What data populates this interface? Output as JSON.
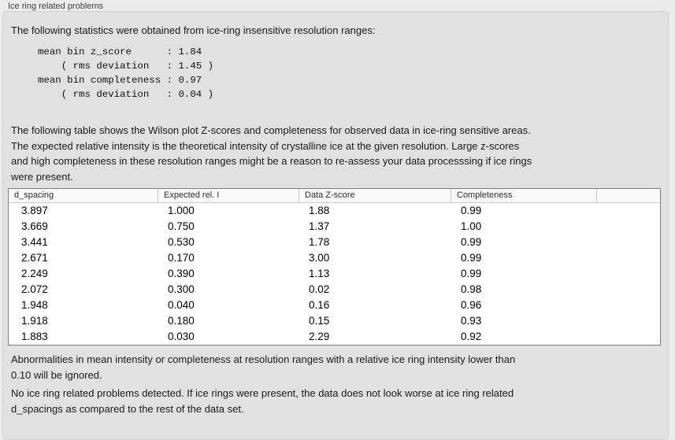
{
  "window": {
    "title": "Ice ring related problems"
  },
  "panel": {
    "intro": "The following statistics were obtained from ice-ring insensitive resolution ranges:",
    "stats_block": {
      "lines": [
        "mean bin z_score      : 1.84",
        "    ( rms deviation   : 1.45 )",
        "mean bin completeness : 0.97",
        "    ( rms deviation   : 0.04 )"
      ],
      "mean_bin_z_score": "1.84",
      "z_score_rms_deviation": "1.45",
      "mean_bin_completeness": "0.97",
      "completeness_rms_deviation": "0.04"
    },
    "description_lines": [
      "The following table shows the Wilson plot Z-scores and completeness for observed data in ice-ring sensitive areas.",
      "The expected relative intensity is the theoretical intensity of crystalline ice at the given resolution. Large z-scores",
      "and high completeness in these resolution ranges might be a reason to re-assess your data processsing if ice rings",
      "were present."
    ],
    "note_lines": [
      "Abnormalities in mean intensity or completeness at resolution ranges with a relative ice ring intensity lower than",
      "0.10 will be ignored."
    ],
    "conclusion_lines": [
      "No ice ring related problems detected. If ice rings were present, the data does not look worse at ice ring related",
      "d_spacings as compared to the rest of the data set."
    ]
  },
  "table": {
    "columns": [
      "d_spacing",
      "Expected rel. I",
      "Data Z-score",
      "Completeness",
      ""
    ],
    "rows": [
      [
        "3.897",
        "1.000",
        "1.88",
        "0.99"
      ],
      [
        "3.669",
        "0.750",
        "1.37",
        "1.00"
      ],
      [
        "3.441",
        "0.530",
        "1.78",
        "0.99"
      ],
      [
        "2.671",
        "0.170",
        "3.00",
        "0.99"
      ],
      [
        "2.249",
        "0.390",
        "1.13",
        "0.99"
      ],
      [
        "2.072",
        "0.300",
        "0.02",
        "0.98"
      ],
      [
        "1.948",
        "0.040",
        "0.16",
        "0.96"
      ],
      [
        "1.918",
        "0.180",
        "0.15",
        "0.93"
      ],
      [
        "1.883",
        "0.030",
        "2.29",
        "0.92"
      ]
    ]
  }
}
